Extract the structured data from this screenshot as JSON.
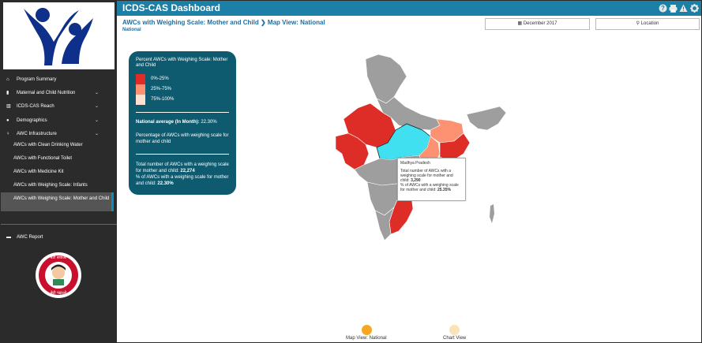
{
  "header": {
    "title": "ICDS-CAS Dashboard"
  },
  "sidebar": {
    "items": [
      {
        "label": "Program Summary",
        "icon": "home-icon",
        "chevron": ""
      },
      {
        "label": "Maternal and Child Nutrition",
        "icon": "baby-bottle-icon",
        "chevron": "⌄"
      },
      {
        "label": "ICDS-CAS Reach",
        "icon": "bar-chart-icon",
        "chevron": "⌄"
      },
      {
        "label": "Demographics",
        "icon": "people-icon",
        "chevron": "⌄"
      },
      {
        "label": "AWC Infrastructure",
        "icon": "lightbulb-icon",
        "chevron": "⌄"
      }
    ],
    "sub_items": [
      "AWCs with Clean Drinking Water",
      "AWCs with Functional Toilet",
      "AWCs with Medicine Kit",
      "AWCs with Weighing Scale: Infants",
      "AWCs with Weighing Scale: Mother and Child"
    ],
    "report": {
      "label": "AWC Report",
      "icon": "report-icon"
    },
    "beti_logo_text_top": "बेटी बचाओ",
    "beti_logo_text_bottom": "बेटी पढ़ाओ"
  },
  "breadcrumb": {
    "part1": "AWCs with Weighing Scale: Mother and Child",
    "part2": "Map View: National",
    "sub": "National"
  },
  "filters": {
    "date": "December 2017",
    "location": "Location"
  },
  "legend": {
    "title": "Percent AWCs with Weighing Scale: Mother and Child",
    "ranges": [
      {
        "label": "0%-25%",
        "color": "#de2d26"
      },
      {
        "label": "25%-75%",
        "color": "#fc9272"
      },
      {
        "label": "75%-100%",
        "color": "#fee0d2"
      }
    ],
    "avg_label": "National average (In Month):",
    "avg_value": "22.30%",
    "pct_desc": "Percentage of AWCs with weighing scale for mother and child",
    "totals_label": "Total number of AWCs with a weighing scale for mother and child:",
    "totals_value": "22,274",
    "pct_label": "% of AWCs with a weighing scale for mother and child:",
    "pct_value": "22.30%"
  },
  "tooltip": {
    "state": "Madhya Pradesh",
    "line1": "Total number of AWCs with a weighing scale for mother and child:",
    "value1": "3,290",
    "line2": "% of AWCs with a weighing scale for mother and child:",
    "value2": "25.35%"
  },
  "map": {
    "default_color": "#9e9e9e",
    "highlight_color": "#40e0f0"
  },
  "views": [
    {
      "label": "Map View: National",
      "color": "#f5a623"
    },
    {
      "label": "Chart View",
      "color": "#fbe3b8"
    }
  ]
}
